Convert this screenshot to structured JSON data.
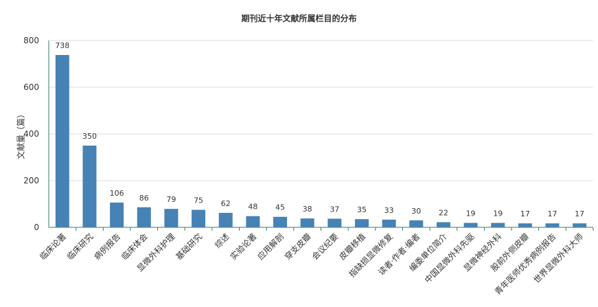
{
  "chart_data": {
    "type": "bar",
    "title": "期刊近十年文献所属栏目的分布",
    "xlabel": "",
    "ylabel": "文献量（篇）",
    "ylim": [
      0,
      800
    ],
    "yticks": [
      0,
      200,
      400,
      600,
      800
    ],
    "grid": true,
    "legend": "none",
    "bar_color": "#4682b4",
    "categories": [
      "临床论著",
      "临床研究",
      "病例报告",
      "临床体会",
      "显微外科护理",
      "基础研究",
      "综述",
      "实验论著",
      "应用解剖",
      "穿支皮瓣",
      "会议纪要",
      "皮瓣移植",
      "指缺损显微修复",
      "读者·作者·编者",
      "编委单位简介",
      "中国显微外科先驱",
      "显微神经外科",
      "股前外侧皮瓣",
      "青年医师优秀病例报告",
      "世界显微外科大师"
    ],
    "values": [
      738,
      350,
      106,
      86,
      79,
      75,
      62,
      48,
      45,
      38,
      37,
      35,
      33,
      30,
      22,
      19,
      19,
      17,
      17,
      17
    ]
  }
}
